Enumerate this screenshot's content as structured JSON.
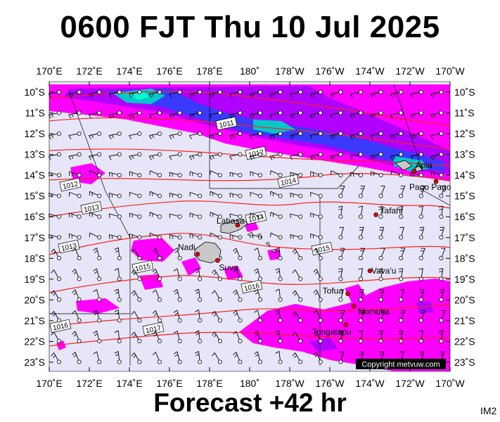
{
  "title": "0600 FJT Thu 10 Jul 2025",
  "footer": "Forecast +42 hr",
  "corner_tag": "IM2",
  "copyright": "Copyright metvuw.com",
  "colors": {
    "ocean": "#e6e6f8",
    "rain_light": "#ff00ff",
    "rain_medium": "#b000ff",
    "rain_heavy": "#3a3aff",
    "rain_extreme": "#00c8c8",
    "isobar": "#ff2020",
    "land": "#c8c8c8",
    "grid": "#000000"
  },
  "lon_labels_top": [
    "170˚E",
    "172˚E",
    "174˚E",
    "176˚E",
    "178˚E",
    "180˚",
    "178˚W",
    "176˚W",
    "174˚W",
    "172˚W",
    "170˚W"
  ],
  "lon_labels_bottom": [
    "170˚E",
    "172˚E",
    "174˚E",
    "176˚E",
    "178˚E",
    "180˚",
    "178˚W",
    "176˚W",
    "174˚W",
    "172˚W",
    "170˚W"
  ],
  "lat_labels_left": [
    "10˚S",
    "11˚S",
    "12˚S",
    "13˚S",
    "14˚S",
    "15˚S",
    "16˚S",
    "17˚S",
    "18˚S",
    "19˚S",
    "20˚S",
    "21˚S",
    "22˚S",
    "23˚S"
  ],
  "lat_labels_right": [
    "10˚S",
    "11˚S",
    "12˚S",
    "13˚S",
    "14˚S",
    "15˚S",
    "16˚S",
    "17˚S",
    "18˚S",
    "19˚S",
    "20˚S",
    "21˚S",
    "22˚S",
    "23˚S"
  ],
  "places": [
    {
      "name": "Labasa",
      "lon": 179.4,
      "lat": -16.4
    },
    {
      "name": "Nadi",
      "lon": 177.4,
      "lat": -17.8
    },
    {
      "name": "Suva",
      "lon": 178.4,
      "lat": -18.1
    },
    {
      "name": "Apia",
      "lon": -171.8,
      "lat": -13.8
    },
    {
      "name": "Pago Pago",
      "lon": -170.7,
      "lat": -14.3
    },
    {
      "name": "Tafahi",
      "lon": -173.7,
      "lat": -15.9
    },
    {
      "name": "Vava'u",
      "lon": -174.0,
      "lat": -18.6
    },
    {
      "name": "Tofua",
      "lon": -175.1,
      "lat": -19.7
    },
    {
      "name": "Nomuka",
      "lon": -174.8,
      "lat": -20.3
    },
    {
      "name": "Tongatapu",
      "lon": -175.2,
      "lat": -21.2
    }
  ],
  "isobar_labels": [
    "1011",
    "1012",
    "1012",
    "1013",
    "1013",
    "1014",
    "1014",
    "1015",
    "1015",
    "1016",
    "1016",
    "1017"
  ]
}
